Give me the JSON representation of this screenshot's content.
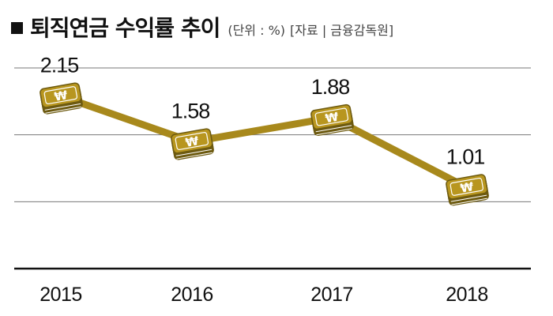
{
  "header": {
    "title": "퇴직연금 수익률 추이",
    "unit": "(단위 : %)",
    "source": "[자료 | 금융감독원]"
  },
  "colors": {
    "line": "#a8891c",
    "marker": "#b8961f",
    "marker_dark": "#6d5a10",
    "grid": "#777777",
    "axis": "#111111"
  },
  "marker_icon": "won-banknote-stack-icon",
  "chart_data": {
    "type": "line",
    "title": "퇴직연금 수익률 추이",
    "unit": "%",
    "categories": [
      "2015",
      "2016",
      "2017",
      "2018"
    ],
    "values": [
      2.15,
      1.58,
      1.88,
      1.01
    ],
    "value_labels": [
      "2.15",
      "1.58",
      "1.88",
      "1.01"
    ],
    "ylim": [
      0,
      2.5
    ],
    "grid": true,
    "legend": "none"
  }
}
